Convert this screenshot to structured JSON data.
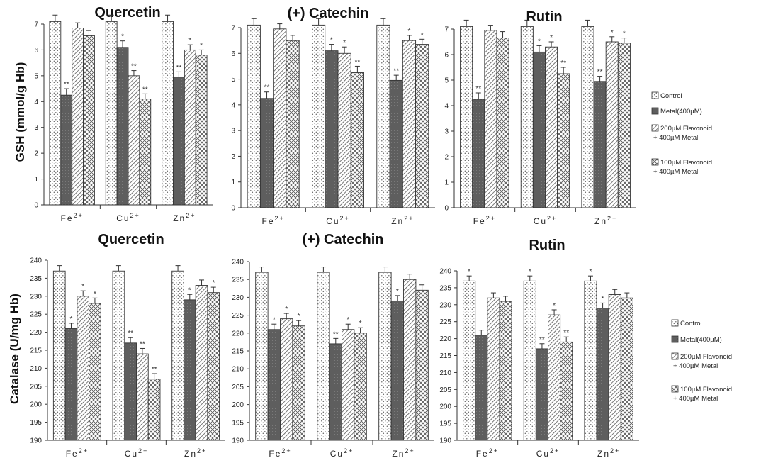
{
  "legend": {
    "entries": [
      {
        "label": "Control",
        "pattern": "dots"
      },
      {
        "label": "Metal(400µM)",
        "pattern": "dark"
      },
      {
        "label": "200µM  Flavonoid",
        "label2": "+ 400µM Metal",
        "pattern": "diag"
      },
      {
        "label": "100µM  Flavonoid",
        "label2": "+ 400µM Metal",
        "pattern": "cross"
      }
    ]
  },
  "row_labels": {
    "top": "GSH (mmol/g Hb)",
    "bottom": "Catalase (U/mg Hb)"
  },
  "chart_data": [
    {
      "type": "bar",
      "title": "Quercetin",
      "ylabel": "GSH (mmol/g Hb)",
      "ylim": [
        0,
        7
      ],
      "yticks": [
        0,
        1,
        2,
        3,
        4,
        5,
        6,
        7
      ],
      "categories": [
        "Fe",
        "Cu",
        "Zn"
      ],
      "superscripts": [
        "2+",
        "2+",
        "2+"
      ],
      "series": [
        {
          "name": "Control",
          "values": [
            7.1,
            7.1,
            7.1
          ],
          "errors": [
            0.25,
            0.25,
            0.25
          ],
          "sig": [
            "",
            "",
            ""
          ]
        },
        {
          "name": "Metal(400µM)",
          "values": [
            4.25,
            6.1,
            4.95
          ],
          "errors": [
            0.25,
            0.25,
            0.2
          ],
          "sig": [
            "**",
            "*",
            "**"
          ]
        },
        {
          "name": "200µM  Flavonoid + 400µM Metal",
          "values": [
            6.85,
            5.0,
            6.0
          ],
          "errors": [
            0.2,
            0.2,
            0.2
          ],
          "sig": [
            "",
            "**",
            "*"
          ]
        },
        {
          "name": "100µM  Flavonoid + 400µM Metal",
          "values": [
            6.55,
            4.1,
            5.8
          ],
          "errors": [
            0.2,
            0.2,
            0.2
          ],
          "sig": [
            "",
            "**",
            "*"
          ]
        }
      ]
    },
    {
      "type": "bar",
      "title": "(+) Catechin",
      "ylabel": "",
      "ylim": [
        0,
        7
      ],
      "yticks": [
        0,
        1,
        2,
        3,
        4,
        5,
        6,
        7
      ],
      "categories": [
        "Fe",
        "Cu",
        "Zn"
      ],
      "superscripts": [
        "2+",
        "2+",
        "2+"
      ],
      "series": [
        {
          "name": "Control",
          "values": [
            7.1,
            7.1,
            7.1
          ],
          "errors": [
            0.25,
            0.25,
            0.25
          ],
          "sig": [
            "",
            "",
            ""
          ]
        },
        {
          "name": "Metal(400µM)",
          "values": [
            4.25,
            6.1,
            4.95
          ],
          "errors": [
            0.25,
            0.25,
            0.2
          ],
          "sig": [
            "**",
            "*",
            "**"
          ]
        },
        {
          "name": "200µM  Flavonoid + 400µM Metal",
          "values": [
            6.95,
            6.0,
            6.5
          ],
          "errors": [
            0.2,
            0.25,
            0.2
          ],
          "sig": [
            "",
            "*",
            "*"
          ]
        },
        {
          "name": "100µM  Flavonoid + 400µM Metal",
          "values": [
            6.5,
            5.25,
            6.35
          ],
          "errors": [
            0.2,
            0.25,
            0.2
          ],
          "sig": [
            "",
            "**",
            "*"
          ]
        }
      ]
    },
    {
      "type": "bar",
      "title": "Rutin",
      "ylabel": "",
      "ylim": [
        0,
        7
      ],
      "yticks": [
        0,
        1,
        2,
        3,
        4,
        5,
        6,
        7
      ],
      "categories": [
        "Fe",
        "Cu",
        "Zn"
      ],
      "superscripts": [
        "2+",
        "2+",
        "2+"
      ],
      "series": [
        {
          "name": "Control",
          "values": [
            7.1,
            7.1,
            7.1
          ],
          "errors": [
            0.25,
            0.25,
            0.25
          ],
          "sig": [
            "",
            "",
            ""
          ]
        },
        {
          "name": "Metal(400µM)",
          "values": [
            4.25,
            6.1,
            4.95
          ],
          "errors": [
            0.25,
            0.25,
            0.2
          ],
          "sig": [
            "**",
            "*",
            "**"
          ]
        },
        {
          "name": "200µM  Flavonoid + 400µM Metal",
          "values": [
            6.95,
            6.3,
            6.5
          ],
          "errors": [
            0.2,
            0.2,
            0.2
          ],
          "sig": [
            "",
            "*",
            "*"
          ]
        },
        {
          "name": "100µM  Flavonoid + 400µM Metal",
          "values": [
            6.65,
            5.25,
            6.45
          ],
          "errors": [
            0.25,
            0.25,
            0.2
          ],
          "sig": [
            "",
            "**",
            "*"
          ]
        }
      ]
    },
    {
      "type": "bar",
      "title": "Quercetin",
      "ylabel": "Catalase (U/mg Hb)",
      "ylim": [
        190,
        240
      ],
      "yticks": [
        190,
        195,
        200,
        205,
        210,
        215,
        220,
        225,
        230,
        235,
        240
      ],
      "categories": [
        "Fe",
        "Cu",
        "Zn"
      ],
      "superscripts": [
        "2+",
        "2+",
        "2+"
      ],
      "series": [
        {
          "name": "Control",
          "values": [
            237,
            237,
            237
          ],
          "errors": [
            1.5,
            1.5,
            1.5
          ],
          "sig": [
            "",
            "",
            ""
          ]
        },
        {
          "name": "Metal(400µM)",
          "values": [
            221,
            217,
            229
          ],
          "errors": [
            1.5,
            1.5,
            1.5
          ],
          "sig": [
            "*",
            "**",
            "*"
          ]
        },
        {
          "name": "200µM  Flavonoid + 400µM Metal",
          "values": [
            230,
            214,
            233
          ],
          "errors": [
            1.5,
            1.5,
            1.5
          ],
          "sig": [
            "*",
            "**",
            ""
          ]
        },
        {
          "name": "100µM  Flavonoid + 400µM Metal",
          "values": [
            228,
            207,
            231
          ],
          "errors": [
            1.5,
            1.5,
            1.5
          ],
          "sig": [
            "*",
            "**",
            "*"
          ]
        }
      ]
    },
    {
      "type": "bar",
      "title": "(+) Catechin",
      "ylabel": "",
      "ylim": [
        190,
        240
      ],
      "yticks": [
        190,
        195,
        200,
        205,
        210,
        215,
        220,
        225,
        230,
        235,
        240
      ],
      "categories": [
        "Fe",
        "Cu",
        "Zn"
      ],
      "superscripts": [
        "2+",
        "2+",
        "2+"
      ],
      "series": [
        {
          "name": "Control",
          "values": [
            237,
            237,
            237
          ],
          "errors": [
            1.5,
            1.5,
            1.5
          ],
          "sig": [
            "",
            "",
            ""
          ]
        },
        {
          "name": "Metal(400µM)",
          "values": [
            221,
            217,
            229
          ],
          "errors": [
            1.5,
            1.5,
            1.5
          ],
          "sig": [
            "*",
            "**",
            "*"
          ]
        },
        {
          "name": "200µM  Flavonoid + 400µM Metal",
          "values": [
            224,
            221,
            235
          ],
          "errors": [
            1.5,
            1.5,
            1.5
          ],
          "sig": [
            "*",
            "*",
            ""
          ]
        },
        {
          "name": "100µM  Flavonoid + 400µM Metal",
          "values": [
            222,
            220,
            232
          ],
          "errors": [
            1.5,
            1.5,
            1.5
          ],
          "sig": [
            "*",
            "*",
            ""
          ]
        }
      ]
    },
    {
      "type": "bar",
      "title": "Rutin",
      "ylabel": "",
      "ylim": [
        190,
        240
      ],
      "yticks": [
        190,
        195,
        200,
        205,
        210,
        215,
        220,
        225,
        230,
        235,
        240
      ],
      "categories": [
        "Fe",
        "Cu",
        "Zn"
      ],
      "superscripts": [
        "2+",
        "2+",
        "2+"
      ],
      "series": [
        {
          "name": "Control",
          "values": [
            237,
            237,
            237
          ],
          "errors": [
            1.5,
            1.5,
            1.5
          ],
          "sig": [
            "*",
            "*",
            "*"
          ]
        },
        {
          "name": "Metal(400µM)",
          "values": [
            221,
            217,
            229
          ],
          "errors": [
            1.5,
            1.5,
            1.5
          ],
          "sig": [
            "",
            "**",
            "*"
          ]
        },
        {
          "name": "200µM  Flavonoid + 400µM Metal",
          "values": [
            232,
            227,
            233
          ],
          "errors": [
            1.5,
            1.5,
            1.5
          ],
          "sig": [
            "",
            "*",
            ""
          ]
        },
        {
          "name": "100µM  Flavonoid + 400µM Metal",
          "values": [
            231,
            219,
            232
          ],
          "errors": [
            1.5,
            1.5,
            1.5
          ],
          "sig": [
            "",
            "**",
            ""
          ]
        }
      ]
    }
  ]
}
